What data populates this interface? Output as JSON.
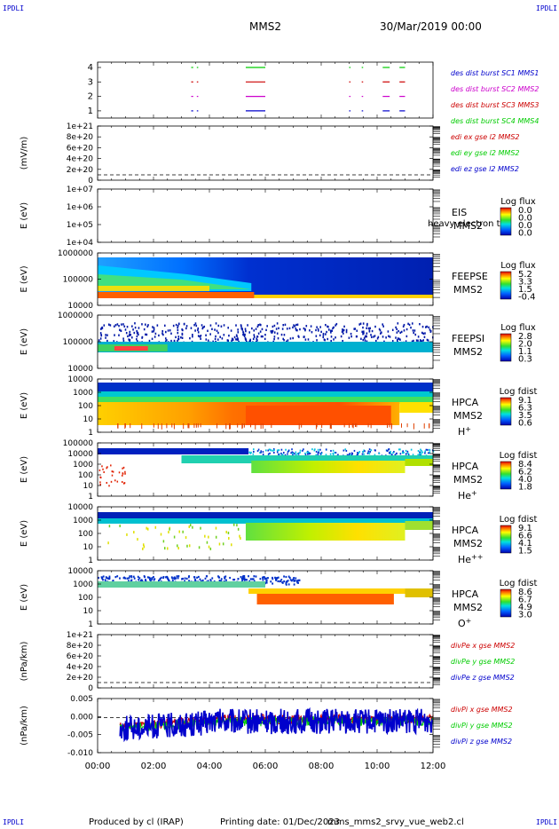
{
  "corner_label": "IPDLI",
  "header": {
    "spacecraft": "MMS2",
    "datetime": "30/Mar/2019 00:00"
  },
  "footer": {
    "producer": "Produced by cl (IRAP)",
    "printing": "Printing date: 01/Dec/2023",
    "filename": "mms_mms2_srvy_vue_web2.cl"
  },
  "colors": {
    "blue": "#0000cc",
    "magenta": "#cc00cc",
    "red": "#cc0000",
    "green": "#00cc00"
  },
  "chart_data": {
    "type": "heatmap",
    "time_axis": {
      "ticks": [
        "00:00",
        "02:00",
        "04:00",
        "06:00",
        "08:00",
        "10:00",
        "12:00"
      ],
      "range_hours": [
        0,
        12
      ]
    },
    "panels": [
      {
        "id": "burst",
        "type": "timeline",
        "yticks": [
          "4",
          "3",
          "2",
          "1"
        ],
        "legend": [
          {
            "text": "des dist burst SC1 MMS1",
            "color": "#0000cc"
          },
          {
            "text": "des dist burst SC2 MMS2",
            "color": "#cc00cc"
          },
          {
            "text": "des dist burst SC3 MMS3",
            "color": "#cc0000"
          },
          {
            "text": "des dist burst SC4 MMS4",
            "color": "#00cc00"
          }
        ],
        "intervals_hours": [
          [
            3.35,
            3.42
          ],
          [
            3.55,
            3.6
          ],
          [
            5.3,
            6.0
          ],
          [
            9.0,
            9.05
          ],
          [
            9.45,
            9.5
          ],
          [
            10.2,
            10.45
          ],
          [
            10.8,
            11.0
          ]
        ]
      },
      {
        "id": "edi",
        "type": "line",
        "ylabel": "(mV/m)",
        "yticks": [
          "1e+21",
          "8e+20",
          "6e+20",
          "4e+20",
          "2e+20",
          "0"
        ],
        "legend": [
          {
            "text": "edi ex gse l2 MMS2",
            "color": "#cc0000"
          },
          {
            "text": "edi ey gse l2 MMS2",
            "color": "#00cc00"
          },
          {
            "text": "edi ez gse l2 MMS2",
            "color": "#0000cc"
          }
        ]
      },
      {
        "id": "eis",
        "type": "heatmap",
        "ylabel": "E (eV)",
        "yticks": [
          "1e+07",
          "1e+06",
          "1e+05",
          "1e+04"
        ],
        "instrument": "EIS",
        "spacecraft": "MMS2",
        "extra_label": "heavy electron to",
        "colorbar": {
          "title": "Log flux",
          "ticks": [
            "0.0",
            "0.0",
            "0.0",
            "0.0"
          ]
        }
      },
      {
        "id": "feepse",
        "type": "heatmap",
        "ylabel": "E (eV)",
        "yticks": [
          "1000000",
          "100000",
          "10000"
        ],
        "instrument": "FEEPSE",
        "spacecraft": "MMS2",
        "colorbar": {
          "title": "Log flux",
          "ticks": [
            "5.2",
            "3.3",
            "1.5",
            "-0.4"
          ]
        }
      },
      {
        "id": "feepsi",
        "type": "heatmap",
        "ylabel": "E (eV)",
        "yticks": [
          "1000000",
          "100000",
          "10000"
        ],
        "instrument": "FEEPSI",
        "spacecraft": "MMS2",
        "colorbar": {
          "title": "Log flux",
          "ticks": [
            "2.8",
            "2.0",
            "1.1",
            "0.3"
          ]
        }
      },
      {
        "id": "hpca_h",
        "type": "heatmap",
        "ylabel": "E (eV)",
        "yticks": [
          "10000",
          "1000",
          "100",
          "10",
          "1"
        ],
        "instrument": "HPCA",
        "spacecraft": "MMS2",
        "species": "H",
        "charge": "+",
        "colorbar": {
          "title": "Log fdist",
          "ticks": [
            "9.1",
            "6.3",
            "3.5",
            "0.6"
          ]
        }
      },
      {
        "id": "hpca_he1",
        "type": "heatmap",
        "ylabel": "E (eV)",
        "yticks": [
          "100000",
          "10000",
          "1000",
          "100",
          "10",
          "1"
        ],
        "instrument": "HPCA",
        "spacecraft": "MMS2",
        "species": "He",
        "charge": "+",
        "colorbar": {
          "title": "Log fdist",
          "ticks": [
            "8.4",
            "6.2",
            "4.0",
            "1.8"
          ]
        }
      },
      {
        "id": "hpca_he2",
        "type": "heatmap",
        "ylabel": "E (eV)",
        "yticks": [
          "10000",
          "1000",
          "100",
          "10",
          "1"
        ],
        "instrument": "HPCA",
        "spacecraft": "MMS2",
        "species": "He",
        "charge": "++",
        "colorbar": {
          "title": "Log fdist",
          "ticks": [
            "9.1",
            "6.6",
            "4.1",
            "1.5"
          ]
        }
      },
      {
        "id": "hpca_o",
        "type": "heatmap",
        "ylabel": "E (eV)",
        "yticks": [
          "10000",
          "1000",
          "100",
          "10",
          "1"
        ],
        "instrument": "HPCA",
        "spacecraft": "MMS2",
        "species": "O",
        "charge": "+",
        "colorbar": {
          "title": "Log fdist",
          "ticks": [
            "8.6",
            "6.7",
            "4.9",
            "3.0"
          ]
        }
      },
      {
        "id": "divpe",
        "type": "line",
        "ylabel": "(nPa/km)",
        "yticks": [
          "1e+21",
          "8e+20",
          "6e+20",
          "4e+20",
          "2e+20",
          "0"
        ],
        "legend": [
          {
            "text": "divPe x gse MMS2",
            "color": "#cc0000"
          },
          {
            "text": "divPe y gse MMS2",
            "color": "#00cc00"
          },
          {
            "text": "divPe z gse MMS2",
            "color": "#0000cc"
          }
        ]
      },
      {
        "id": "divpi",
        "type": "line",
        "ylabel": "(nPa/km)",
        "yticks": [
          "0.005",
          "0.000",
          "-0.005",
          "-0.010"
        ],
        "ylim": [
          -0.011,
          0.006
        ],
        "legend": [
          {
            "text": "divPi x gse MMS2",
            "color": "#cc0000"
          },
          {
            "text": "divPi y gse MMS2",
            "color": "#00cc00"
          },
          {
            "text": "divPi z gse MMS2",
            "color": "#0000cc"
          }
        ]
      }
    ]
  }
}
